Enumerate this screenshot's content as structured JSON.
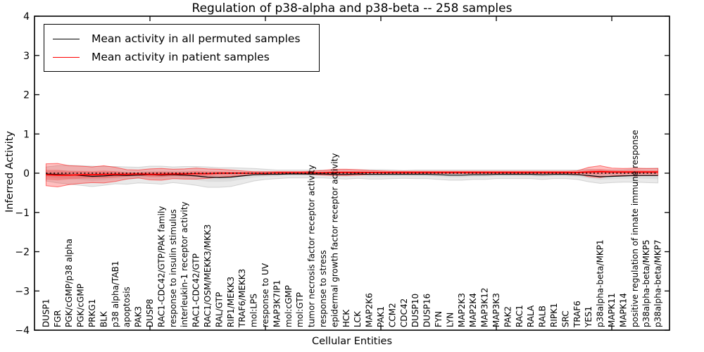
{
  "title": "Regulation of p38-alpha and p38-beta -- 258 samples",
  "axes": {
    "x_title": "Cellular Entities",
    "y_title": "Inferred Activity"
  },
  "legend": [
    {
      "label": "Mean activity in all permuted samples",
      "color": "#000000"
    },
    {
      "label": "Mean activity in patient samples",
      "color": "#ff0000"
    }
  ],
  "chart_data": {
    "type": "line",
    "title": "Regulation of p38-alpha and p38-beta -- 258 samples",
    "xlabel": "Cellular Entities",
    "ylabel": "Inferred Activity",
    "ylim": [
      -4,
      4
    ],
    "yticks": [
      4,
      3,
      2,
      1,
      0,
      -1,
      -2,
      -3,
      -4
    ],
    "ytick_labels": [
      "4",
      "3",
      "2",
      "1",
      "0",
      "−1",
      "−2",
      "−3",
      "−4"
    ],
    "xticks_numeric": [
      10,
      20,
      30,
      40,
      50
    ],
    "grid": false,
    "legend_position": "upper left",
    "baseline": 0,
    "baseline_style": "dotted-black",
    "categories": [
      "DUSP1",
      "FGR",
      "PGK/cGMP/p38 alpha",
      "PGK/cGMP",
      "PRKG1",
      "BLK",
      "p38 alpha/TAB1",
      "apoptosis",
      "PAK3",
      "DUSP8",
      "RAC1-CDC42/GTP/PAK family",
      "response to insulin stimulus",
      "interleukin-1 receptor activity",
      "RAC1-CDC42/GTP",
      "RAC1/OSM/MEKK3/MKK3",
      "RAL/GTP",
      "RIP1/MEKK3",
      "TRAF6/MEKK3",
      "mol:LPS",
      "response to UV",
      "MAP3K7IP1",
      "mol:cGMP",
      "mol:GTP",
      "tumor necrosis factor receptor activity",
      "response to stress",
      "epidermal growth factor receptor activity",
      "HCK",
      "LCK",
      "MAP2K6",
      "PAK1",
      "CCM2",
      "CDC42",
      "DUSP10",
      "DUSP16",
      "FYN",
      "LYN",
      "MAP2K3",
      "MAP2K4",
      "MAP3K12",
      "MAP3K3",
      "PAK2",
      "RAC1",
      "RALA",
      "RALB",
      "RIPK1",
      "SRC",
      "TRAF6",
      "YES1",
      "p38alpha-beta/MKP1",
      "MAPK11",
      "MAPK14",
      "positive regulation of innate immune response",
      "p38alpha-beta/MKP5",
      "p38alpha-beta/MKP7"
    ],
    "series": [
      {
        "name": "Mean activity in all permuted samples",
        "color": "#000000",
        "band_color": "#888888",
        "values": [
          -0.02,
          -0.03,
          -0.04,
          -0.06,
          -0.08,
          -0.07,
          -0.05,
          -0.06,
          -0.05,
          -0.04,
          -0.05,
          -0.04,
          -0.05,
          -0.07,
          -0.1,
          -0.11,
          -0.1,
          -0.07,
          -0.04,
          -0.03,
          -0.03,
          -0.02,
          -0.02,
          -0.02,
          -0.02,
          -0.03,
          -0.03,
          -0.02,
          -0.03,
          -0.03,
          -0.03,
          -0.03,
          -0.03,
          -0.03,
          -0.04,
          -0.05,
          -0.05,
          -0.04,
          -0.04,
          -0.03,
          -0.03,
          -0.03,
          -0.03,
          -0.04,
          -0.03,
          -0.03,
          -0.04,
          -0.06,
          -0.09,
          -0.08,
          -0.07,
          -0.06,
          -0.06,
          -0.06
        ],
        "band_halfwidth": [
          0.18,
          0.22,
          0.24,
          0.25,
          0.26,
          0.24,
          0.22,
          0.22,
          0.2,
          0.22,
          0.23,
          0.2,
          0.22,
          0.24,
          0.26,
          0.25,
          0.24,
          0.2,
          0.16,
          0.13,
          0.11,
          0.1,
          0.1,
          0.1,
          0.1,
          0.11,
          0.12,
          0.11,
          0.12,
          0.12,
          0.11,
          0.1,
          0.11,
          0.11,
          0.12,
          0.13,
          0.13,
          0.12,
          0.12,
          0.11,
          0.11,
          0.11,
          0.11,
          0.12,
          0.11,
          0.11,
          0.12,
          0.16,
          0.17,
          0.16,
          0.16,
          0.17,
          0.18,
          0.19
        ]
      },
      {
        "name": "Mean activity in patient samples",
        "color": "#ff0000",
        "band_color": "#ff0000",
        "values": [
          -0.04,
          -0.05,
          -0.05,
          -0.04,
          -0.04,
          -0.03,
          -0.03,
          -0.03,
          -0.02,
          -0.03,
          -0.03,
          -0.02,
          -0.02,
          -0.01,
          -0.01,
          0.0,
          0.0,
          0.0,
          0.0,
          0.0,
          0.01,
          0.01,
          0.01,
          0.01,
          0.01,
          0.02,
          0.02,
          0.02,
          0.02,
          0.02,
          0.02,
          0.02,
          0.02,
          0.02,
          0.02,
          0.02,
          0.02,
          0.02,
          0.02,
          0.02,
          0.02,
          0.02,
          0.02,
          0.02,
          0.02,
          0.02,
          0.02,
          0.03,
          0.04,
          0.03,
          0.03,
          0.03,
          0.03,
          0.03
        ],
        "band_halfwidth": [
          0.28,
          0.3,
          0.24,
          0.22,
          0.2,
          0.22,
          0.18,
          0.12,
          0.1,
          0.14,
          0.15,
          0.12,
          0.13,
          0.14,
          0.12,
          0.1,
          0.08,
          0.06,
          0.04,
          0.04,
          0.03,
          0.03,
          0.03,
          0.04,
          0.06,
          0.08,
          0.08,
          0.07,
          0.05,
          0.04,
          0.03,
          0.03,
          0.03,
          0.03,
          0.03,
          0.03,
          0.03,
          0.03,
          0.03,
          0.03,
          0.03,
          0.03,
          0.03,
          0.03,
          0.03,
          0.03,
          0.04,
          0.12,
          0.15,
          0.1,
          0.09,
          0.1,
          0.09,
          0.09
        ]
      }
    ]
  }
}
